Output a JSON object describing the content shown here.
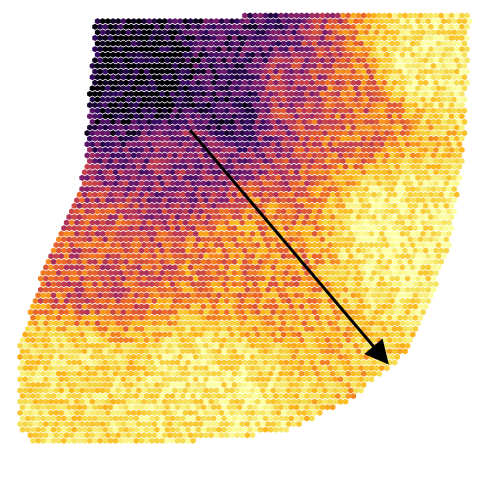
{
  "chart_data": {
    "type": "scatter",
    "title": "",
    "xlabel": "",
    "ylabel": "",
    "grid": false,
    "legend": "none",
    "colormap": "inferno",
    "colormap_stops": [
      "#000004",
      "#320a5e",
      "#781c6d",
      "#bc3754",
      "#ed6925",
      "#fbb61a",
      "#f5db4c",
      "#fcffa4"
    ],
    "marker": "hexagon",
    "x_range": [
      0,
      1
    ],
    "y_range": [
      0,
      1
    ],
    "spots_grid": {
      "cols": 90,
      "rows": 85,
      "x_range": [
        0.04,
        0.96
      ],
      "y_range": [
        0.04,
        0.98
      ]
    },
    "tissue_outline": [
      [
        0.19,
        0.96
      ],
      [
        0.52,
        0.97
      ],
      [
        0.94,
        0.97
      ],
      [
        0.93,
        0.72
      ],
      [
        0.9,
        0.5
      ],
      [
        0.82,
        0.3
      ],
      [
        0.7,
        0.2
      ],
      [
        0.58,
        0.14
      ],
      [
        0.45,
        0.12
      ],
      [
        0.07,
        0.11
      ],
      [
        0.04,
        0.14
      ],
      [
        0.04,
        0.31
      ],
      [
        0.08,
        0.44
      ],
      [
        0.14,
        0.57
      ],
      [
        0.17,
        0.67
      ],
      [
        0.18,
        0.82
      ]
    ],
    "value_anchors": [
      {
        "x": 0.3,
        "y": 0.85,
        "value": 0.02
      },
      {
        "x": 0.45,
        "y": 0.8,
        "value": 0.15
      },
      {
        "x": 0.48,
        "y": 0.92,
        "value": 0.18
      },
      {
        "x": 0.38,
        "y": 0.68,
        "value": 0.32
      },
      {
        "x": 0.58,
        "y": 0.82,
        "value": 0.4
      },
      {
        "x": 0.7,
        "y": 0.78,
        "value": 0.55
      },
      {
        "x": 0.85,
        "y": 0.88,
        "value": 0.9
      },
      {
        "x": 0.2,
        "y": 0.45,
        "value": 0.5
      },
      {
        "x": 0.5,
        "y": 0.5,
        "value": 0.62
      },
      {
        "x": 0.8,
        "y": 0.55,
        "value": 0.92
      },
      {
        "x": 0.15,
        "y": 0.25,
        "value": 0.85
      },
      {
        "x": 0.4,
        "y": 0.22,
        "value": 0.9
      }
    ],
    "arrow": {
      "x0": 0.38,
      "y0": 0.74,
      "x1": 0.77,
      "y1": 0.28,
      "color": "#000000"
    }
  }
}
